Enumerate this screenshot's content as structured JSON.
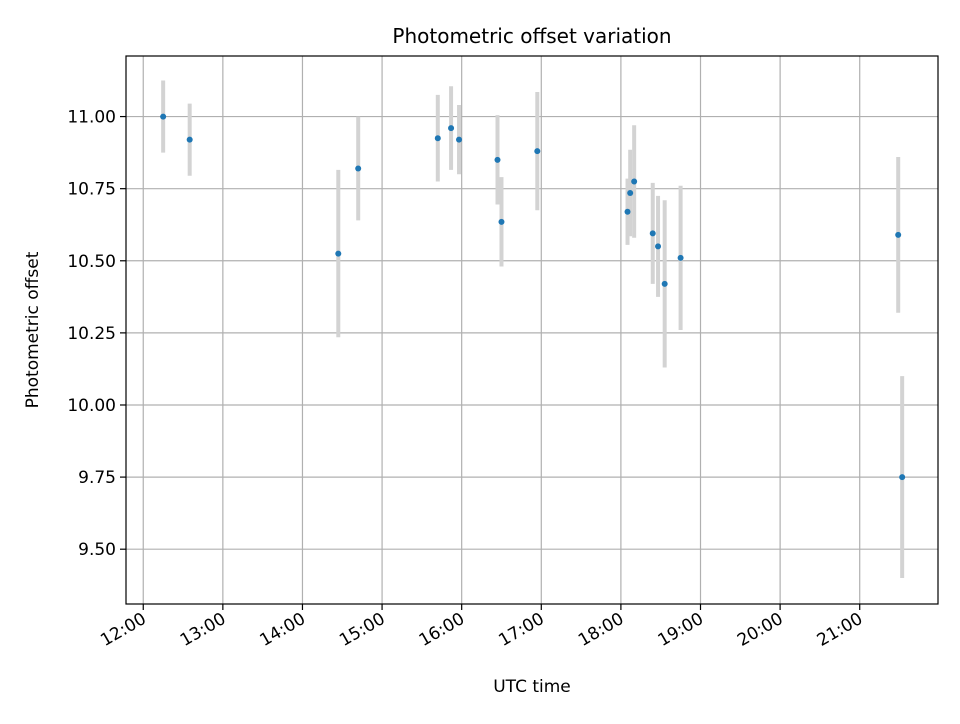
{
  "chart_data": {
    "type": "scatter",
    "title": "Photometric offset variation",
    "xlabel": "UTC time",
    "ylabel": "Photometric offset",
    "x_ticks": [
      "12:00",
      "13:00",
      "14:00",
      "15:00",
      "16:00",
      "17:00",
      "18:00",
      "19:00",
      "20:00",
      "21:00"
    ],
    "y_ticks": [
      "9.50",
      "9.75",
      "10.00",
      "10.25",
      "10.50",
      "10.75",
      "11.00"
    ],
    "xlim": [
      "11:47",
      "21:59"
    ],
    "ylim": [
      9.31,
      11.21
    ],
    "grid": true,
    "series": [
      {
        "x": [
          "12:15",
          "12:35",
          "14:27",
          "14:42",
          "15:42",
          "15:52",
          "15:58",
          "16:27",
          "16:30",
          "16:57",
          "18:05",
          "18:07",
          "18:10",
          "18:24",
          "18:28",
          "18:33",
          "18:45",
          "21:29",
          "21:32"
        ],
        "y": [
          11.0,
          10.92,
          10.525,
          10.82,
          10.925,
          10.96,
          10.92,
          10.85,
          10.635,
          10.88,
          10.67,
          10.735,
          10.775,
          10.595,
          10.55,
          10.42,
          10.51,
          10.59,
          9.75
        ],
        "err": [
          0.125,
          0.125,
          0.29,
          0.18,
          0.15,
          0.145,
          0.12,
          0.155,
          0.155,
          0.205,
          0.115,
          0.15,
          0.195,
          0.175,
          0.175,
          0.29,
          0.25,
          0.27,
          0.35
        ]
      }
    ],
    "colors": {
      "point": "#1f77b4",
      "errorbar": "#d3d3d3",
      "grid": "#b0b0b0",
      "axes": "#000000"
    }
  }
}
